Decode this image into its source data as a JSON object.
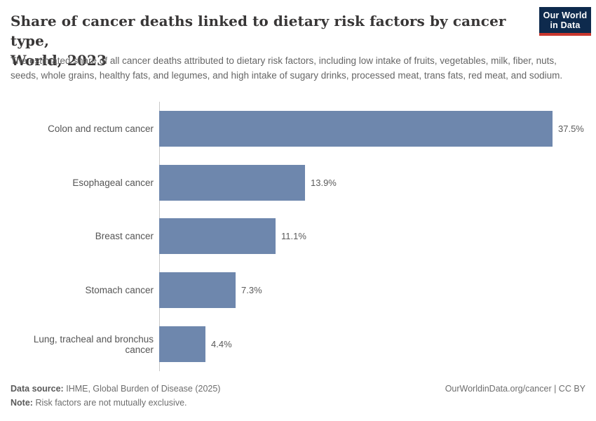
{
  "header": {
    "title_line1": "Share of cancer deaths linked to dietary risk factors by cancer type,",
    "title_line2": "World, 2023",
    "subtitle": "The estimated share of all cancer deaths attributed to dietary risk factors, including low intake of fruits, vegetables, milk, fiber, nuts, seeds, whole grains, healthy fats, and legumes, and high intake of sugary drinks, processed meat, trans fats, red meat, and sodium."
  },
  "logo": {
    "line1": "Our World",
    "line2": "in Data"
  },
  "chart_data": {
    "type": "bar",
    "orientation": "horizontal",
    "categories": [
      "Colon and rectum cancer",
      "Esophageal cancer",
      "Breast cancer",
      "Stomach cancer",
      "Lung, tracheal and bronchus cancer"
    ],
    "values": [
      37.5,
      13.9,
      11.1,
      7.3,
      4.4
    ],
    "value_labels": [
      "37.5%",
      "13.9%",
      "11.1%",
      "7.3%",
      "4.4%"
    ],
    "title": "Share of cancer deaths linked to dietary risk factors by cancer type, World, 2023",
    "xlabel": "",
    "ylabel": "",
    "xlim": [
      0,
      37.5
    ],
    "grid": false,
    "legend": "none",
    "unit": "%"
  },
  "colors": {
    "bar": "#6e87ad",
    "logo_navy": "#0e2a4d",
    "logo_red": "#c9372e",
    "title": "#383636",
    "subtitle": "#666666",
    "axis": "#c8c8c8"
  },
  "footer": {
    "source_label": "Data source:",
    "source_text": "IHME, Global Burden of Disease (2025)",
    "note_label": "Note:",
    "note_text": "Risk factors are not mutually exclusive.",
    "right_text": "OurWorldinData.org/cancer | CC BY"
  }
}
